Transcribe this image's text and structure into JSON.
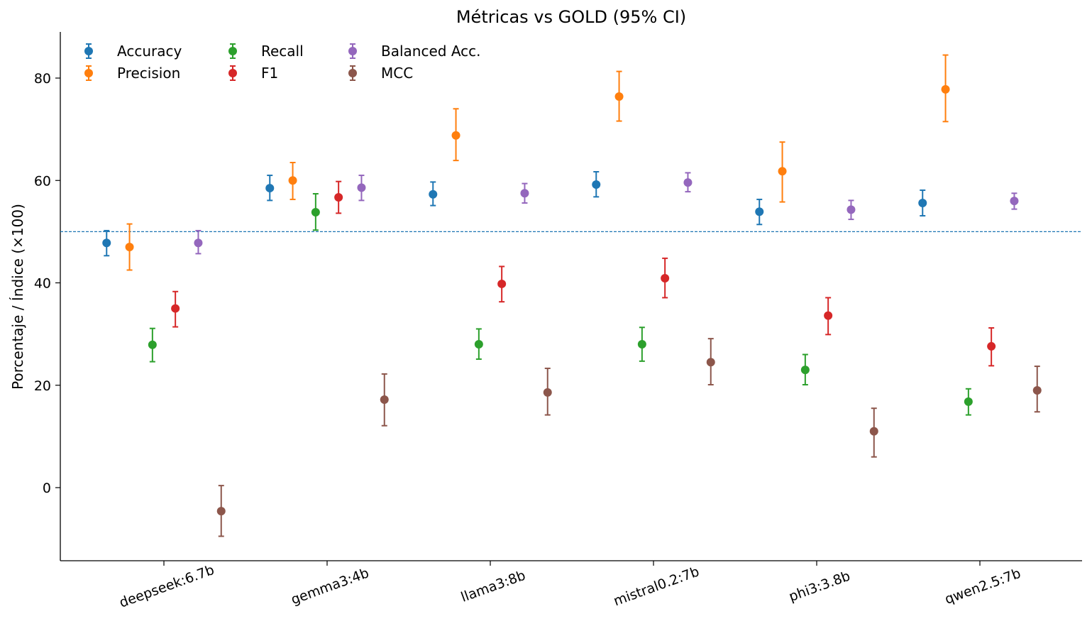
{
  "chart_data": {
    "type": "errorbar",
    "title": "Métricas vs GOLD (95% CI)",
    "xlabel": "",
    "ylabel": "Porcentaje / Índice (×100)",
    "ylim": [
      -14.5,
      89.5
    ],
    "yticks": [
      0,
      20,
      40,
      60,
      80
    ],
    "reference_line": {
      "y": 50,
      "style": "dashed",
      "color": "#1f77b4"
    },
    "legend_position": "top-left",
    "grid": false,
    "categories": [
      "deepseek:6.7b",
      "gemma3:4b",
      "llama3:8b",
      "mistral0.2:7b",
      "phi3:3.8b",
      "qwen2.5:7b"
    ],
    "series": [
      {
        "name": "Accuracy",
        "color": "#1f77b4",
        "values": [
          47.8,
          58.5,
          57.3,
          59.2,
          53.9,
          55.6
        ],
        "lower": [
          45.3,
          56.1,
          55.1,
          56.8,
          51.4,
          53.1
        ],
        "upper": [
          50.2,
          61.0,
          59.7,
          61.7,
          56.3,
          58.1
        ]
      },
      {
        "name": "Precision",
        "color": "#ff7f0e",
        "values": [
          47.0,
          60.0,
          68.8,
          76.4,
          61.8,
          77.8
        ],
        "lower": [
          42.5,
          56.3,
          63.9,
          71.6,
          55.8,
          71.5
        ],
        "upper": [
          51.5,
          63.5,
          74.0,
          81.3,
          67.5,
          84.5
        ]
      },
      {
        "name": "Recall",
        "color": "#2ca02c",
        "values": [
          27.9,
          53.8,
          28.0,
          28.0,
          23.0,
          16.8
        ],
        "lower": [
          24.6,
          50.3,
          25.1,
          24.7,
          20.1,
          14.2
        ],
        "upper": [
          31.1,
          57.4,
          31.0,
          31.3,
          26.0,
          19.3
        ]
      },
      {
        "name": "F1",
        "color": "#d62728",
        "values": [
          35.0,
          56.7,
          39.8,
          40.9,
          33.6,
          27.6
        ],
        "lower": [
          31.4,
          53.6,
          36.3,
          37.1,
          29.9,
          23.8
        ],
        "upper": [
          38.3,
          59.8,
          43.2,
          44.8,
          37.1,
          31.2
        ]
      },
      {
        "name": "Balanced Acc.",
        "color": "#9467bd",
        "values": [
          47.8,
          58.6,
          57.5,
          59.6,
          54.3,
          56.0
        ],
        "lower": [
          45.7,
          56.1,
          55.6,
          57.8,
          52.4,
          54.4
        ],
        "upper": [
          50.2,
          61.0,
          59.4,
          61.5,
          56.1,
          57.5
        ]
      },
      {
        "name": "MCC",
        "color": "#8c564b",
        "values": [
          -4.6,
          17.2,
          18.6,
          24.5,
          11.0,
          19.0
        ],
        "lower": [
          -9.5,
          12.1,
          14.2,
          20.1,
          6.0,
          14.8
        ],
        "upper": [
          0.4,
          22.2,
          23.3,
          29.1,
          15.5,
          23.7
        ]
      }
    ]
  }
}
